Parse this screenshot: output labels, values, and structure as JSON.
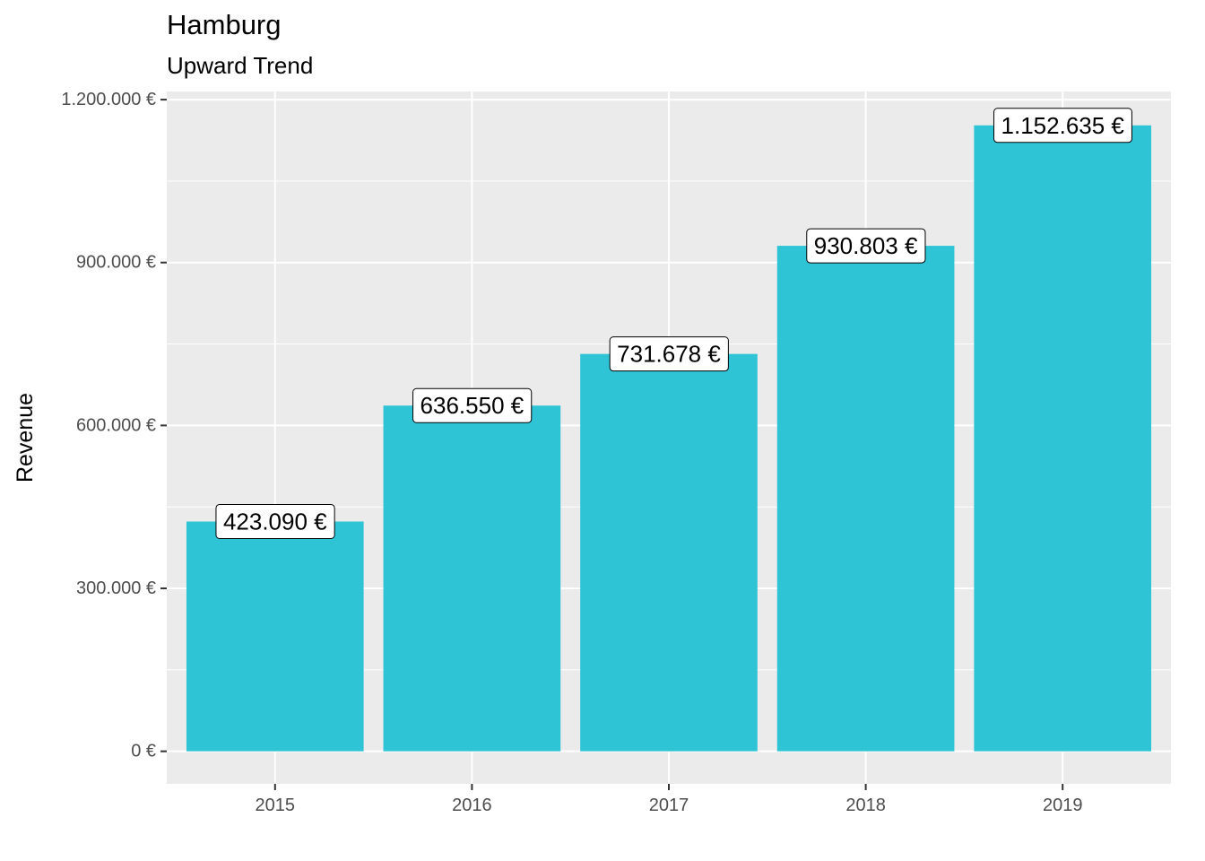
{
  "chart_data": {
    "type": "bar",
    "title": "Hamburg",
    "subtitle": "Upward Trend",
    "xlabel": "",
    "ylabel": "Revenue",
    "categories": [
      "2015",
      "2016",
      "2017",
      "2018",
      "2019"
    ],
    "values": [
      423090,
      636550,
      731678,
      930803,
      1152635
    ],
    "data_labels": [
      "423.090 €",
      "636.550 €",
      "731.678 €",
      "930.803 €",
      "1.152.635 €"
    ],
    "ylim": [
      -60000,
      1215000
    ],
    "y_ticks": [
      0,
      300000,
      600000,
      900000,
      1200000
    ],
    "y_tick_labels": [
      "0 €",
      "300.000 €",
      "600.000 €",
      "900.000 €",
      "1.200.000 €"
    ],
    "y_minor_ticks": [
      150000,
      450000,
      750000,
      1050000
    ],
    "grid": true,
    "legend": "none",
    "colors": {
      "bar": "#2EC4D6",
      "panel": "#EBEBEB",
      "grid": "#FFFFFF",
      "tick_text": "#4D4D4D",
      "tick_mark": "#333333"
    }
  }
}
